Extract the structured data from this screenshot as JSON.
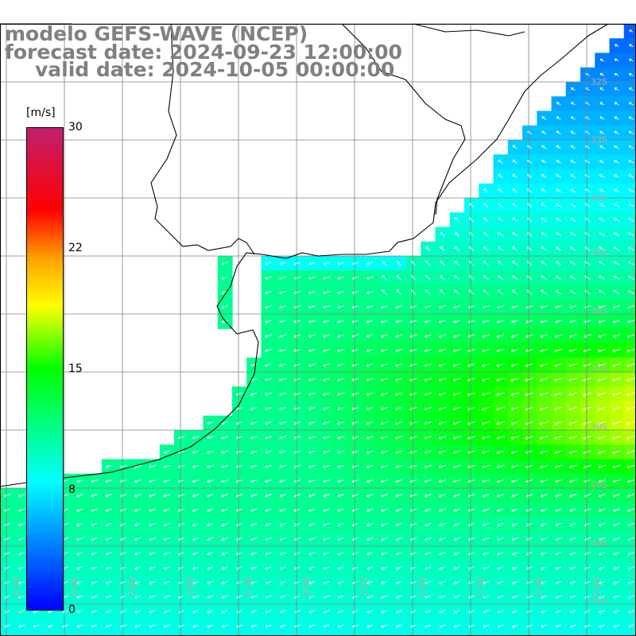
{
  "title": {
    "model": "modelo GEFS-WAVE (NCEP)",
    "forecast": "forecast date: 2024-09-23 12:00:00",
    "valid": "valid date: 2024-10-05 00:00:00"
  },
  "colorbar": {
    "unit": "[m/s]",
    "ticks": [
      "30",
      "22",
      "15",
      "8",
      "0"
    ],
    "min": 0,
    "max": 30,
    "colors": [
      "#0000ff",
      "#00ffff",
      "#00ff00",
      "#ffff00",
      "#ffa000",
      "#ff0000",
      "#c02070"
    ]
  },
  "axes": {
    "lat_labels": [
      "32S",
      "33S",
      "34S",
      "35S",
      "36S",
      "37S",
      "38S",
      "39S",
      "40S",
      "41S"
    ],
    "lon_labels": [
      "61W",
      "60W",
      "59W",
      "58W",
      "57W",
      "56W",
      "55W",
      "54W",
      "53W",
      "52W",
      "51W"
    ]
  },
  "field": {
    "variable": "wind speed",
    "unit": "m/s",
    "arrow_color": "#ffffff",
    "coast_color": "#000000",
    "grid_color": "#808080"
  }
}
